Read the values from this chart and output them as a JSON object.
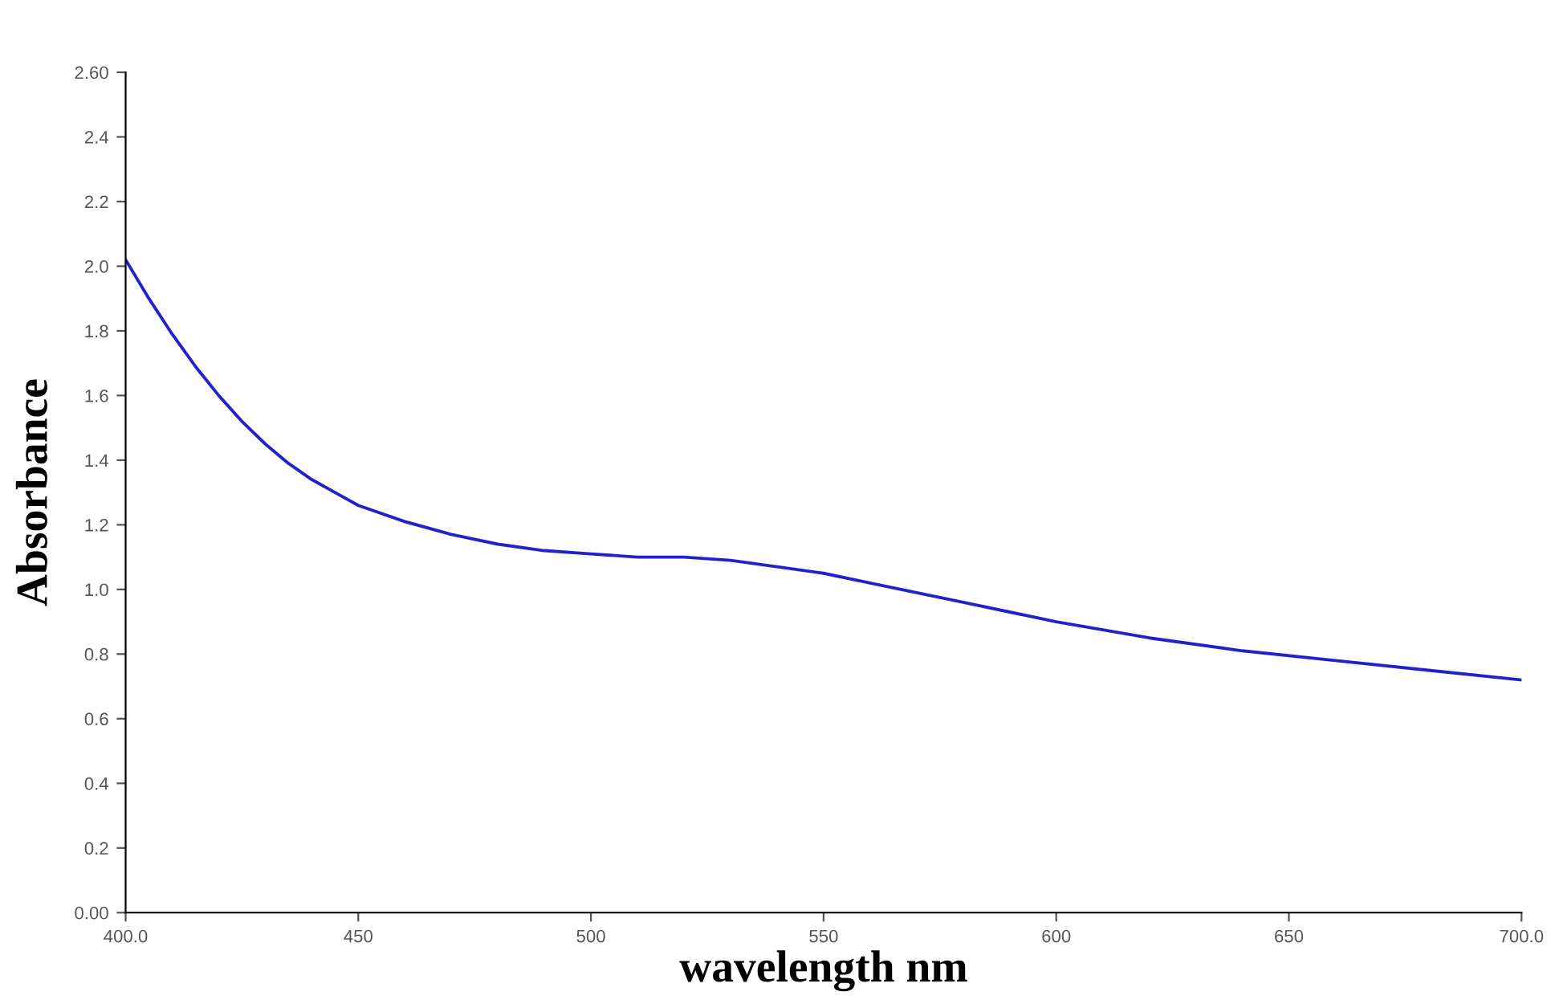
{
  "chart_data": {
    "type": "line",
    "xlabel": "wavelength nm",
    "ylabel": "Absorbance",
    "x": [
      400,
      405,
      410,
      415,
      420,
      425,
      430,
      435,
      440,
      445,
      450,
      460,
      470,
      480,
      490,
      500,
      510,
      520,
      530,
      540,
      550,
      560,
      570,
      580,
      590,
      600,
      620,
      640,
      660,
      680,
      700
    ],
    "series": [
      {
        "color": "#2222cc",
        "values": [
          2.02,
          1.9,
          1.79,
          1.69,
          1.6,
          1.52,
          1.45,
          1.39,
          1.34,
          1.3,
          1.26,
          1.21,
          1.17,
          1.14,
          1.12,
          1.11,
          1.1,
          1.1,
          1.09,
          1.07,
          1.05,
          1.02,
          0.99,
          0.96,
          0.93,
          0.9,
          0.85,
          0.81,
          0.78,
          0.75,
          0.72
        ]
      }
    ],
    "xlim": [
      400,
      700
    ],
    "ylim": [
      0,
      2.6
    ],
    "xticks": [
      {
        "value": 400,
        "label": "400.0"
      },
      450,
      500,
      550,
      600,
      650,
      {
        "value": 700,
        "label": "700.0"
      }
    ],
    "yticks": [
      {
        "value": 0,
        "label": "0.00"
      },
      0.2,
      0.4,
      0.6,
      0.8,
      {
        "value": 1.0,
        "label": "1.0"
      },
      1.2,
      1.4,
      1.6,
      1.8,
      {
        "value": 2.0,
        "label": "2.0"
      },
      2.2,
      2.4,
      {
        "value": 2.6,
        "label": "2.60"
      }
    ],
    "grid": false,
    "legend": false,
    "marker": "none",
    "line_style": "solid"
  }
}
